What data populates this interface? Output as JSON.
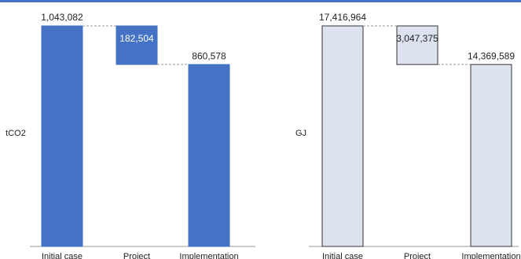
{
  "chart_data": [
    {
      "type": "waterfall",
      "y_label": "tCO2",
      "categories": [
        "Initial case",
        "Project",
        "Implementation"
      ],
      "values": [
        1043082,
        182504,
        860578
      ],
      "value_labels": [
        "1,043,082",
        "182,504",
        "860,578"
      ],
      "color": "#4472c4",
      "edge_color": "#4472c4",
      "inside_label_color": "#ffffff"
    },
    {
      "type": "waterfall",
      "y_label": "GJ",
      "categories": [
        "Initial case",
        "Project",
        "Implementation"
      ],
      "values": [
        17416964,
        3047375,
        14369589
      ],
      "value_labels": [
        "17,416,964",
        "3,047,375",
        "14,369,589"
      ],
      "color": "#dce3ef",
      "edge_color": "#333333",
      "inside_label_color": "#222222"
    }
  ]
}
